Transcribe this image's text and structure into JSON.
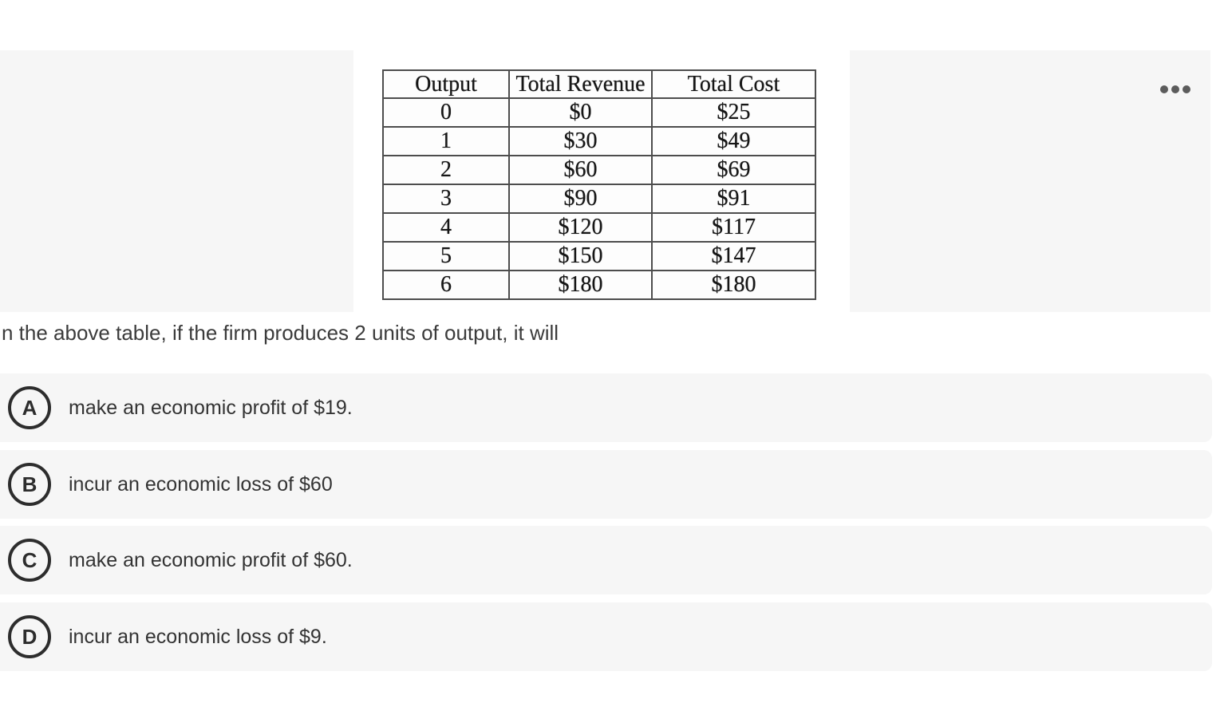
{
  "question": {
    "text": "n the above table, if the firm produces 2 units of output, it will"
  },
  "table": {
    "headers": [
      "Output",
      "Total Revenue",
      "Total Cost"
    ],
    "rows": [
      [
        "0",
        "$0",
        "$25"
      ],
      [
        "1",
        "$30",
        "$49"
      ],
      [
        "2",
        "$60",
        "$69"
      ],
      [
        "3",
        "$90",
        "$91"
      ],
      [
        "4",
        "$120",
        "$117"
      ],
      [
        "5",
        "$150",
        "$147"
      ],
      [
        "6",
        "$180",
        "$180"
      ]
    ]
  },
  "options": [
    {
      "letter": "A",
      "text": "make an economic profit of $19."
    },
    {
      "letter": "B",
      "text": "incur an economic loss of $60"
    },
    {
      "letter": "C",
      "text": "make an economic profit of $60."
    },
    {
      "letter": "D",
      "text": "incur an economic loss of $9."
    }
  ],
  "more_menu": {
    "icon": "ellipsis"
  },
  "colors": {
    "background": "#ffffff",
    "panel_gray": "#f6f6f6",
    "option_gray": "#f6f6f6",
    "question_text": "#3b3b3b",
    "option_text": "#333333",
    "badge_outline": "#2d2d2d",
    "table_border": "#4d4d4d",
    "table_text": "#161616",
    "ellipsis_dots": "#5c5c5c"
  }
}
